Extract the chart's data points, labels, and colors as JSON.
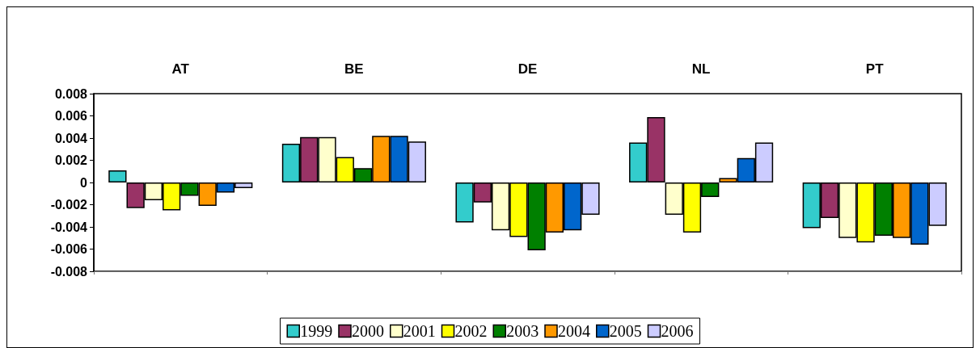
{
  "chart_data": {
    "type": "bar",
    "categories": [
      "AT",
      "BE",
      "DE",
      "NL",
      "PT"
    ],
    "series": [
      {
        "name": "1999",
        "color": "#33cccc",
        "values": [
          0.0011,
          0.0035,
          -0.0036,
          0.0036,
          -0.0041
        ]
      },
      {
        "name": "2000",
        "color": "#993366",
        "values": [
          -0.0023,
          0.0041,
          -0.0018,
          0.0059,
          -0.0032
        ]
      },
      {
        "name": "2001",
        "color": "#ffffcc",
        "values": [
          -0.0016,
          0.0041,
          -0.0043,
          -0.0029,
          -0.005
        ]
      },
      {
        "name": "2002",
        "color": "#ffff00",
        "values": [
          -0.0025,
          0.0023,
          -0.0049,
          -0.0045,
          -0.0054
        ]
      },
      {
        "name": "2003",
        "color": "#008000",
        "values": [
          -0.0012,
          0.0013,
          -0.0061,
          -0.0013,
          -0.0048
        ]
      },
      {
        "name": "2004",
        "color": "#ff9900",
        "values": [
          -0.0021,
          0.0042,
          -0.0045,
          0.0004,
          -0.005
        ]
      },
      {
        "name": "2005",
        "color": "#0066cc",
        "values": [
          -0.0009,
          0.0042,
          -0.0043,
          0.0022,
          -0.0056
        ]
      },
      {
        "name": "2006",
        "color": "#ccccff",
        "values": [
          -0.0005,
          0.0037,
          -0.0029,
          0.0036,
          -0.0039
        ]
      }
    ],
    "ylim": [
      -0.008,
      0.008
    ],
    "yticks": [
      -0.008,
      -0.006,
      -0.004,
      -0.002,
      0,
      0.002,
      0.004,
      0.006,
      0.008
    ],
    "legend": "bottom"
  }
}
